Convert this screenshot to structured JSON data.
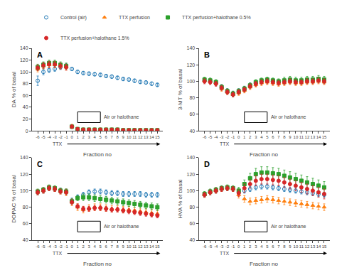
{
  "chart_data": [
    {
      "type": "scatter",
      "title": "A",
      "xlabel": "Fraction no",
      "ylabel": "DA % of basal",
      "x": [
        -6,
        -5,
        -4,
        -3,
        -2,
        -1,
        0,
        1,
        2,
        3,
        4,
        5,
        6,
        7,
        8,
        9,
        10,
        11,
        12,
        13,
        14,
        15
      ],
      "xlim": [
        -7,
        16
      ],
      "xticks": [
        -6,
        -5,
        -4,
        -3,
        -2,
        -1,
        0,
        1,
        2,
        3,
        4,
        5,
        6,
        7,
        8,
        9,
        10,
        11,
        12,
        13,
        14,
        15
      ],
      "ylim": [
        0,
        140
      ],
      "yticks": [
        0,
        20,
        40,
        60,
        80,
        100,
        120,
        140
      ],
      "grid": false,
      "legend": "top",
      "series": [
        {
          "name": "Control (air)",
          "color": "#1f77b4",
          "marker": "circle-open",
          "values": [
            85,
            100,
            103,
            105,
            108,
            110,
            105,
            100,
            98,
            97,
            96,
            95,
            93,
            92,
            90,
            88,
            87,
            85,
            83,
            82,
            80,
            78
          ],
          "error": [
            8,
            5,
            4,
            4,
            4,
            4,
            3,
            3,
            3,
            3,
            3,
            3,
            3,
            3,
            3,
            3,
            3,
            3,
            3,
            3,
            3,
            3
          ]
        },
        {
          "name": "TTX perfusion",
          "color": "#ff7f0e",
          "marker": "triangle-up",
          "values": [
            105,
            110,
            112,
            112,
            110,
            108,
            8,
            3,
            2,
            2,
            2,
            2,
            2,
            2,
            2,
            1,
            1,
            1,
            1,
            1,
            1,
            1
          ],
          "error": [
            5,
            5,
            5,
            5,
            5,
            5,
            3,
            1,
            1,
            1,
            1,
            1,
            1,
            1,
            1,
            1,
            1,
            1,
            1,
            1,
            1,
            1
          ]
        },
        {
          "name": "TTX perfusion+halothane 0.5%",
          "color": "#2ca02c",
          "marker": "square",
          "values": [
            108,
            112,
            115,
            115,
            112,
            110,
            7,
            3,
            2,
            2,
            2,
            2,
            2,
            2,
            2,
            1,
            1,
            1,
            1,
            1,
            1,
            1
          ],
          "error": [
            5,
            5,
            5,
            5,
            5,
            5,
            3,
            1,
            1,
            1,
            1,
            1,
            1,
            1,
            1,
            1,
            1,
            1,
            1,
            1,
            1,
            1
          ]
        },
        {
          "name": "TTX perfusion+halothane 1.5%",
          "color": "#d62728",
          "marker": "circle",
          "values": [
            107,
            111,
            113,
            113,
            110,
            108,
            7,
            3,
            2,
            2,
            2,
            2,
            2,
            2,
            2,
            1,
            1,
            1,
            1,
            1,
            1,
            1
          ],
          "error": [
            5,
            5,
            5,
            5,
            5,
            5,
            3,
            1,
            1,
            1,
            1,
            1,
            1,
            1,
            1,
            1,
            1,
            1,
            1,
            1,
            1,
            1
          ]
        }
      ],
      "annotations": [
        {
          "text": "TTX",
          "type": "arrow",
          "x": [
            -1,
            15.5
          ]
        },
        {
          "text": "Air or halothane",
          "type": "box",
          "x": [
            1,
            5
          ]
        }
      ]
    },
    {
      "type": "scatter",
      "title": "B",
      "xlabel": "Fraction no",
      "ylabel": "3-MT % of basal",
      "x": [
        -6,
        -5,
        -4,
        -3,
        -2,
        -1,
        0,
        1,
        2,
        3,
        4,
        5,
        6,
        7,
        8,
        9,
        10,
        11,
        12,
        13,
        14,
        15
      ],
      "xlim": [
        -7,
        16
      ],
      "xticks": [
        -6,
        -5,
        -4,
        -3,
        -2,
        -1,
        0,
        1,
        2,
        3,
        4,
        5,
        6,
        7,
        8,
        9,
        10,
        11,
        12,
        13,
        14,
        15
      ],
      "ylim": [
        40,
        140
      ],
      "yticks": [
        40,
        60,
        80,
        100,
        120,
        140
      ],
      "grid": false,
      "series": [
        {
          "name": "Control (air)",
          "color": "#1f77b4",
          "marker": "circle-open",
          "values": [
            101,
            100,
            98,
            93,
            88,
            85,
            88,
            91,
            95,
            98,
            100,
            101,
            100,
            99,
            100,
            101,
            100,
            100,
            101,
            101,
            102,
            101
          ],
          "error": [
            3,
            3,
            3,
            3,
            3,
            3,
            3,
            3,
            3,
            3,
            3,
            3,
            3,
            3,
            3,
            3,
            3,
            3,
            3,
            3,
            3,
            3
          ]
        },
        {
          "name": "TTX perfusion",
          "color": "#ff7f0e",
          "marker": "triangle-up",
          "values": [
            101,
            100,
            98,
            91,
            87,
            84,
            86,
            89,
            93,
            96,
            98,
            99,
            98,
            97,
            98,
            99,
            98,
            98,
            99,
            99,
            100,
            99
          ],
          "error": [
            3,
            3,
            3,
            3,
            3,
            3,
            3,
            3,
            3,
            3,
            3,
            3,
            3,
            3,
            3,
            3,
            3,
            3,
            3,
            3,
            3,
            3
          ]
        },
        {
          "name": "TTX perfusion+halothane 0.5%",
          "color": "#2ca02c",
          "marker": "square",
          "values": [
            102,
            101,
            99,
            93,
            88,
            85,
            88,
            91,
            95,
            99,
            101,
            102,
            101,
            100,
            101,
            102,
            101,
            101,
            102,
            102,
            103,
            102
          ],
          "error": [
            3,
            3,
            3,
            3,
            3,
            3,
            3,
            3,
            3,
            3,
            3,
            3,
            3,
            3,
            4,
            4,
            4,
            4,
            4,
            4,
            4,
            4
          ]
        },
        {
          "name": "TTX perfusion+halothane 1.5%",
          "color": "#d62728",
          "marker": "circle",
          "values": [
            100,
            99,
            97,
            92,
            87,
            84,
            87,
            90,
            94,
            97,
            99,
            100,
            99,
            98,
            99,
            100,
            99,
            99,
            100,
            100,
            101,
            100
          ],
          "error": [
            3,
            3,
            3,
            3,
            3,
            3,
            3,
            3,
            3,
            3,
            3,
            3,
            3,
            3,
            3,
            3,
            3,
            3,
            3,
            3,
            3,
            3
          ]
        }
      ],
      "annotations": [
        {
          "text": "TTX",
          "type": "arrow",
          "x": [
            -1,
            15.5
          ]
        },
        {
          "text": "Air or halothane",
          "type": "box",
          "x": [
            1,
            5
          ]
        }
      ]
    },
    {
      "type": "scatter",
      "title": "C",
      "xlabel": "Fraction no",
      "ylabel": "DOPAC % of basal",
      "x": [
        -6,
        -5,
        -4,
        -3,
        -2,
        -1,
        0,
        1,
        2,
        3,
        4,
        5,
        6,
        7,
        8,
        9,
        10,
        11,
        12,
        13,
        14,
        15
      ],
      "xlim": [
        -7,
        16
      ],
      "xticks": [
        -6,
        -5,
        -4,
        -3,
        -2,
        -1,
        0,
        1,
        2,
        3,
        4,
        5,
        6,
        7,
        8,
        9,
        10,
        11,
        12,
        13,
        14,
        15
      ],
      "ylim": [
        40,
        140
      ],
      "yticks": [
        40,
        60,
        80,
        100,
        120,
        140
      ],
      "grid": false,
      "series": [
        {
          "name": "Control (air)",
          "color": "#1f77b4",
          "marker": "circle-open",
          "values": [
            98,
            100,
            103,
            102,
            100,
            99,
            88,
            92,
            95,
            98,
            99,
            99,
            98,
            97,
            97,
            96,
            96,
            96,
            96,
            95,
            95,
            95
          ],
          "error": [
            3,
            3,
            3,
            3,
            3,
            3,
            3,
            3,
            3,
            3,
            3,
            3,
            3,
            3,
            3,
            3,
            3,
            3,
            3,
            3,
            3,
            3
          ]
        },
        {
          "name": "TTX perfusion",
          "color": "#ff7f0e",
          "marker": "triangle-up",
          "values": [
            98,
            100,
            103,
            102,
            99,
            98,
            86,
            80,
            77,
            79,
            80,
            80,
            79,
            78,
            78,
            77,
            77,
            76,
            75,
            74,
            73,
            72
          ],
          "error": [
            3,
            3,
            3,
            3,
            3,
            4,
            4,
            4,
            4,
            4,
            4,
            4,
            4,
            4,
            4,
            4,
            4,
            4,
            4,
            4,
            4,
            4
          ]
        },
        {
          "name": "TTX perfusion+halothane 0.5%",
          "color": "#2ca02c",
          "marker": "square",
          "values": [
            99,
            101,
            104,
            103,
            100,
            99,
            87,
            91,
            92,
            92,
            91,
            90,
            89,
            88,
            87,
            86,
            85,
            84,
            83,
            82,
            81,
            80
          ],
          "error": [
            3,
            3,
            3,
            3,
            3,
            3,
            3,
            3,
            4,
            4,
            4,
            4,
            4,
            4,
            4,
            4,
            4,
            4,
            4,
            4,
            4,
            4
          ]
        },
        {
          "name": "TTX perfusion+halothane 1.5%",
          "color": "#d62728",
          "marker": "circle",
          "values": [
            98,
            100,
            103,
            102,
            99,
            98,
            86,
            81,
            78,
            78,
            79,
            79,
            78,
            77,
            77,
            76,
            75,
            74,
            73,
            72,
            71,
            70
          ],
          "error": [
            3,
            3,
            3,
            3,
            3,
            3,
            3,
            3,
            3,
            3,
            3,
            3,
            3,
            3,
            3,
            3,
            3,
            3,
            3,
            3,
            3,
            3
          ]
        }
      ],
      "annotations": [
        {
          "text": "TTX",
          "type": "arrow",
          "x": [
            -1,
            15.5
          ]
        },
        {
          "text": "Air or halothane",
          "type": "box",
          "x": [
            1,
            5
          ]
        }
      ]
    },
    {
      "type": "scatter",
      "title": "D",
      "xlabel": "Fraction no",
      "ylabel": "HVA % of basal",
      "x": [
        -6,
        -5,
        -4,
        -3,
        -2,
        -1,
        0,
        1,
        2,
        3,
        4,
        5,
        6,
        7,
        8,
        9,
        10,
        11,
        12,
        13,
        14,
        15
      ],
      "xlim": [
        -7,
        16
      ],
      "xticks": [
        -6,
        -5,
        -4,
        -3,
        -2,
        -1,
        0,
        1,
        2,
        3,
        4,
        5,
        6,
        7,
        8,
        9,
        10,
        11,
        12,
        13,
        14,
        15
      ],
      "ylim": [
        40,
        140
      ],
      "yticks": [
        40,
        60,
        80,
        100,
        120,
        140
      ],
      "grid": false,
      "series": [
        {
          "name": "Control (air)",
          "color": "#1f77b4",
          "marker": "circle-open",
          "values": [
            95,
            98,
            100,
            102,
            103,
            102,
            98,
            100,
            102,
            104,
            105,
            105,
            104,
            103,
            102,
            101,
            100,
            99,
            98,
            97,
            96,
            95
          ],
          "error": [
            3,
            3,
            3,
            3,
            3,
            3,
            3,
            3,
            3,
            3,
            3,
            3,
            3,
            3,
            3,
            3,
            3,
            3,
            3,
            3,
            3,
            3
          ]
        },
        {
          "name": "TTX perfusion",
          "color": "#ff7f0e",
          "marker": "triangle-up",
          "values": [
            95,
            98,
            100,
            102,
            103,
            102,
            95,
            90,
            87,
            88,
            89,
            90,
            89,
            88,
            87,
            86,
            85,
            84,
            83,
            82,
            81,
            80
          ],
          "error": [
            3,
            3,
            3,
            3,
            3,
            3,
            4,
            4,
            4,
            4,
            4,
            4,
            4,
            4,
            4,
            4,
            4,
            4,
            4,
            4,
            4,
            4
          ]
        },
        {
          "name": "TTX perfusion+halothane 0.5%",
          "color": "#2ca02c",
          "marker": "square",
          "values": [
            96,
            99,
            101,
            103,
            104,
            103,
            100,
            108,
            115,
            120,
            122,
            122,
            121,
            120,
            118,
            116,
            114,
            112,
            110,
            108,
            106,
            104
          ],
          "error": [
            3,
            3,
            3,
            3,
            3,
            3,
            4,
            5,
            6,
            7,
            7,
            7,
            7,
            7,
            7,
            7,
            7,
            7,
            7,
            7,
            7,
            7
          ]
        },
        {
          "name": "TTX perfusion+halothane 1.5%",
          "color": "#d62728",
          "marker": "circle",
          "values": [
            95,
            98,
            100,
            102,
            103,
            102,
            97,
            103,
            108,
            112,
            114,
            114,
            113,
            112,
            110,
            108,
            106,
            104,
            102,
            100,
            98,
            96
          ],
          "error": [
            3,
            3,
            3,
            3,
            3,
            3,
            4,
            5,
            5,
            6,
            6,
            6,
            6,
            6,
            6,
            6,
            6,
            6,
            6,
            6,
            6,
            6
          ]
        }
      ],
      "annotations": [
        {
          "text": "TTX",
          "type": "arrow",
          "x": [
            -1,
            15.5
          ]
        },
        {
          "text": "Air or halothane",
          "type": "box",
          "x": [
            1,
            5
          ]
        }
      ]
    }
  ]
}
